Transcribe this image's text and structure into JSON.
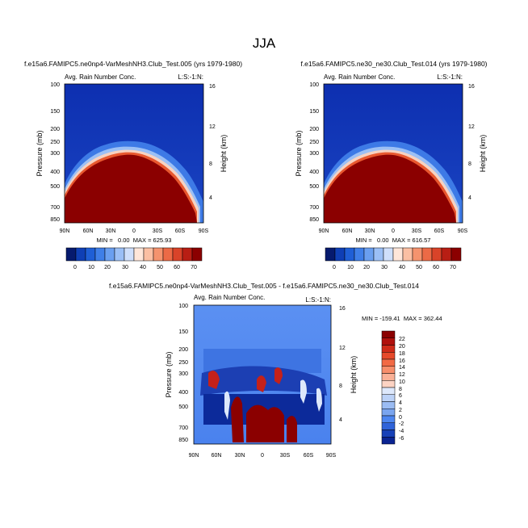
{
  "page_title": "JJA",
  "colors": {
    "bg_dark_blue": "#0d2fb0",
    "field_red": "#8b0000",
    "diff_base_blue": "#4d86f0"
  },
  "chart_data": [
    {
      "type": "heatmap",
      "title": "f.e15a6.FAMIPC5.ne0np4-VarMeshNH3.Club_Test.005 (yrs 1979-1980)",
      "subtitle_left": "Avg. Rain Number Conc.",
      "subtitle_right": "L:S:-1:N:",
      "ylabel": "Pressure (mb)",
      "ylabel_right": "Height (km)",
      "x_ticks": [
        "90N",
        "60N",
        "30N",
        "0",
        "30S",
        "60S",
        "90S"
      ],
      "y_ticks": [
        "100",
        "150",
        "200",
        "250",
        "300",
        "400",
        "500",
        "700",
        "850"
      ],
      "y_ticks_right": [
        "16",
        "12",
        "8",
        "4"
      ],
      "stats": "MIN =   0.00  MAX = 625.93",
      "colorbar": {
        "labels": [
          "0",
          "10",
          "20",
          "30",
          "40",
          "50",
          "60",
          "70"
        ],
        "colors": [
          "#061a6e",
          "#0f3fb5",
          "#1f5fd6",
          "#3f7fe8",
          "#6a9ff0",
          "#9bbff6",
          "#cfdffb",
          "#ffe6d9",
          "#fbbfa3",
          "#f5936e",
          "#ec6a46",
          "#d94329",
          "#b81e14",
          "#8b0000"
        ]
      },
      "ylim": [
        100,
        900
      ],
      "xlim": [
        "90N",
        "90S"
      ]
    },
    {
      "type": "heatmap",
      "title": "f.e15a6.FAMIPC5.ne30_ne30.Club_Test.014 (yrs 1979-1980)",
      "subtitle_left": "Avg. Rain Number Conc.",
      "subtitle_right": "L:S:-1:N:",
      "ylabel": "Pressure (mb)",
      "ylabel_right": "Height (km)",
      "x_ticks": [
        "90N",
        "60N",
        "30N",
        "0",
        "30S",
        "60S",
        "90S"
      ],
      "y_ticks": [
        "100",
        "150",
        "200",
        "250",
        "300",
        "400",
        "500",
        "700",
        "850"
      ],
      "y_ticks_right": [
        "16",
        "12",
        "8",
        "4"
      ],
      "stats": "MIN =   0.00  MAX = 616.57",
      "colorbar": {
        "labels": [
          "0",
          "10",
          "20",
          "30",
          "40",
          "50",
          "60",
          "70"
        ],
        "colors": [
          "#061a6e",
          "#0f3fb5",
          "#1f5fd6",
          "#3f7fe8",
          "#6a9ff0",
          "#9bbff6",
          "#cfdffb",
          "#ffe6d9",
          "#fbbfa3",
          "#f5936e",
          "#ec6a46",
          "#d94329",
          "#b81e14",
          "#8b0000"
        ]
      },
      "ylim": [
        100,
        900
      ],
      "xlim": [
        "90N",
        "90S"
      ]
    },
    {
      "type": "heatmap",
      "title": "f.e15a6.FAMIPC5.ne0np4-VarMeshNH3.Club_Test.005 - f.e15a6.FAMIPC5.ne30_ne30.Club_Test.014",
      "subtitle_left": "Avg. Rain Number Conc.",
      "subtitle_right": "L:S:-1:N:",
      "ylabel": "Pressure (mb)",
      "ylabel_right": "Height (km)",
      "x_ticks": [
        "90N",
        "60N",
        "30N",
        "0",
        "30S",
        "60S",
        "90S"
      ],
      "y_ticks": [
        "100",
        "150",
        "200",
        "250",
        "300",
        "400",
        "500",
        "700",
        "850"
      ],
      "y_ticks_right": [
        "16",
        "12",
        "8",
        "4"
      ],
      "stats": "MIN = -159.41  MAX = 362.44",
      "colorbar": {
        "labels": [
          "22",
          "20",
          "18",
          "16",
          "14",
          "12",
          "10",
          "8",
          "6",
          "4",
          "2",
          "0",
          "-2",
          "-4",
          "-6"
        ],
        "colors": [
          "#8b0000",
          "#b0100c",
          "#cf2a18",
          "#e6492a",
          "#f26a45",
          "#f78e6b",
          "#fab197",
          "#fcd3c3",
          "#dde8fb",
          "#bcd2f7",
          "#9bbcf3",
          "#7aa5ef",
          "#4d86f0",
          "#2f63d9",
          "#1741b8",
          "#0a2492"
        ]
      },
      "ylim": [
        100,
        900
      ],
      "xlim": [
        "90N",
        "90S"
      ]
    }
  ]
}
